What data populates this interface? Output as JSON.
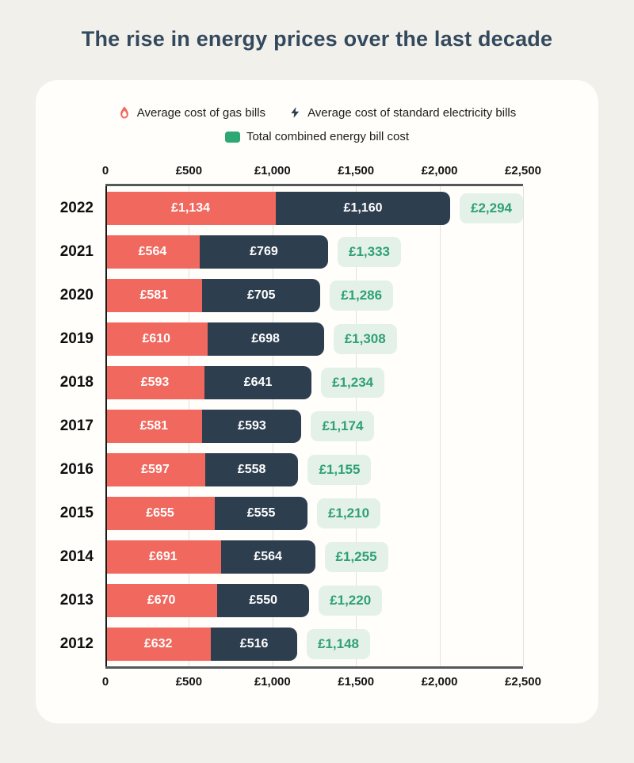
{
  "page": {
    "title": "The rise in energy prices over the last decade"
  },
  "legend": {
    "items": [
      {
        "id": "gas",
        "label": "Average cost of gas bills",
        "icon": "flame-icon",
        "color": "#f0685e"
      },
      {
        "id": "electricity",
        "label": "Average cost of standard electricity bills",
        "icon": "bolt-icon",
        "color": "#2d3e4f"
      },
      {
        "id": "total",
        "label": "Total combined energy bill cost",
        "icon": "square-swatch-icon",
        "color": "#2ea873"
      }
    ]
  },
  "colors": {
    "page_background": "#f2f0eb",
    "card_background": "#fffefb",
    "title": "#33495d",
    "gas_bar": "#f0685e",
    "electricity_bar": "#2d3e4f",
    "total_text": "#2fa173",
    "total_pill_background": "#e4f1e9",
    "axis_frame": "#54585b",
    "gridline": "#e1e1de"
  },
  "chart_data": {
    "type": "bar",
    "orientation": "horizontal",
    "stacked": true,
    "title": "The rise in energy prices over the last decade",
    "xlabel": "",
    "ylabel": "",
    "xlim": [
      0,
      2500
    ],
    "grid": true,
    "legend_position": "top",
    "categories": [
      "2022",
      "2021",
      "2020",
      "2019",
      "2018",
      "2017",
      "2016",
      "2015",
      "2014",
      "2013",
      "2012"
    ],
    "series": [
      {
        "name": "Average cost of gas bills",
        "color": "#f0685e",
        "values": [
          1134,
          564,
          581,
          610,
          593,
          581,
          597,
          655,
          691,
          670,
          632
        ],
        "labels": [
          "£1,134",
          "£564",
          "£581",
          "£610",
          "£593",
          "£581",
          "£597",
          "£655",
          "£691",
          "£670",
          "£632"
        ]
      },
      {
        "name": "Average cost of standard electricity bills",
        "color": "#2d3e4f",
        "values": [
          1160,
          769,
          705,
          698,
          641,
          593,
          558,
          555,
          564,
          550,
          516
        ],
        "labels": [
          "£1,160",
          "£769",
          "£705",
          "£698",
          "£641",
          "£593",
          "£558",
          "£555",
          "£564",
          "£550",
          "£516"
        ]
      }
    ],
    "totals": {
      "name": "Total combined energy bill cost",
      "values": [
        2294,
        1333,
        1286,
        1308,
        1234,
        1174,
        1155,
        1210,
        1255,
        1220,
        1148
      ],
      "labels": [
        "£2,294",
        "£1,333",
        "£1,286",
        "£1,308",
        "£1,234",
        "£1,174",
        "£1,155",
        "£1,210",
        "£1,255",
        "£1,220",
        "£1,148"
      ]
    },
    "x_ticks": [
      {
        "value": 0,
        "label": "0"
      },
      {
        "value": 500,
        "label": "£500"
      },
      {
        "value": 1000,
        "label": "£1,000"
      },
      {
        "value": 1500,
        "label": "£1,500"
      },
      {
        "value": 2000,
        "label": "£2,000"
      },
      {
        "value": 2500,
        "label": "£2,500"
      }
    ]
  }
}
